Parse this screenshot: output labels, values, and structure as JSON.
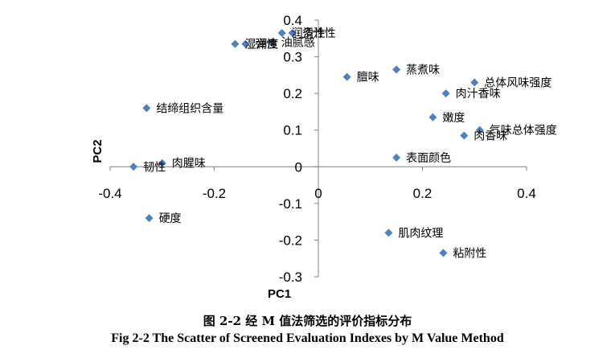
{
  "chart_data": {
    "type": "scatter",
    "title": "",
    "xlabel": "PC1",
    "ylabel": "PC2",
    "xlim": [
      -0.4,
      0.4
    ],
    "ylim": [
      -0.3,
      0.4
    ],
    "x_ticks": [
      -0.4,
      -0.2,
      0,
      0.2,
      0.4
    ],
    "y_ticks": [
      0.4,
      0.3,
      0.2,
      0.1,
      0,
      -0.1,
      -0.2,
      -0.3
    ],
    "x_tick_labels": [
      "-0.4",
      "-0.2",
      "0",
      "0.2",
      "0.4"
    ],
    "y_tick_labels": [
      "0.4",
      "0.3",
      "0.2",
      "0.1",
      "0",
      "-0.1",
      "-0.2",
      "-0.3"
    ],
    "grid": false,
    "legend": "none",
    "marker": "diamond",
    "marker_color": "#4F81BD",
    "points": [
      {
        "label": "润滑性",
        "x": -0.07,
        "y": 0.365
      },
      {
        "label": "多汁性",
        "x": -0.05,
        "y": 0.365
      },
      {
        "label": "油腻感",
        "x": -0.09,
        "y": 0.34
      },
      {
        "label": "弹性",
        "x": -0.14,
        "y": 0.335
      },
      {
        "label": "湿润度",
        "x": -0.16,
        "y": 0.335
      },
      {
        "label": "膻味",
        "x": 0.055,
        "y": 0.245
      },
      {
        "label": "蒸煮味",
        "x": 0.15,
        "y": 0.265
      },
      {
        "label": "总体风味强度",
        "x": 0.3,
        "y": 0.23
      },
      {
        "label": "肉汁香味",
        "x": 0.245,
        "y": 0.2
      },
      {
        "label": "结缔组织含量",
        "x": -0.33,
        "y": 0.16
      },
      {
        "label": "嫩度",
        "x": 0.22,
        "y": 0.135
      },
      {
        "label": "气味总体强度",
        "x": 0.31,
        "y": 0.1
      },
      {
        "label": "肉香味",
        "x": 0.28,
        "y": 0.085
      },
      {
        "label": "表面颜色",
        "x": 0.15,
        "y": 0.025
      },
      {
        "label": "肉腥味",
        "x": -0.3,
        "y": 0.01
      },
      {
        "label": "韧性",
        "x": -0.355,
        "y": 0.0
      },
      {
        "label": "硬度",
        "x": -0.325,
        "y": -0.14
      },
      {
        "label": "肌肉纹理",
        "x": 0.135,
        "y": -0.18
      },
      {
        "label": "粘附性",
        "x": 0.24,
        "y": -0.235
      }
    ]
  },
  "caption": {
    "chinese": "图 2-2  经 M 值法筛选的评价指标分布",
    "english": "Fig 2-2 The Scatter of Screened Evaluation Indexes by M Value Method"
  }
}
